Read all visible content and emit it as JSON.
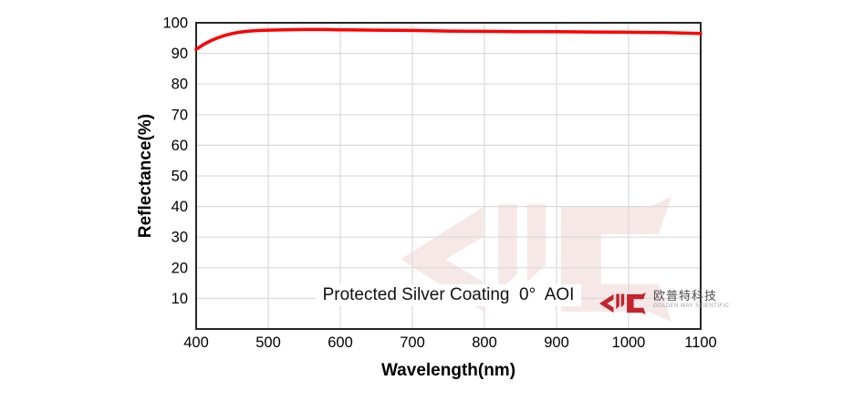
{
  "chart_data": {
    "type": "line",
    "title": "",
    "xlabel": "Wavelength(nm)",
    "ylabel": "Reflectance(%)",
    "annotation": "Protected Silver Coating  0°  AOI",
    "xlim": [
      400,
      1100
    ],
    "ylim": [
      0,
      100
    ],
    "x_ticks": [
      400,
      500,
      600,
      700,
      800,
      900,
      1000,
      1100
    ],
    "y_ticks": [
      10,
      20,
      30,
      40,
      50,
      60,
      70,
      80,
      90,
      100
    ],
    "grid": true,
    "legend": false,
    "series": [
      {
        "name": "Protected Silver Coating 0° AOI Reflectance",
        "color": "#ff0000",
        "x": [
          400,
          410,
          420,
          430,
          440,
          450,
          460,
          470,
          480,
          490,
          500,
          520,
          550,
          580,
          600,
          650,
          700,
          750,
          800,
          850,
          900,
          950,
          1000,
          1050,
          1100
        ],
        "y": [
          91.3,
          92.9,
          94.1,
          95.1,
          95.9,
          96.5,
          96.9,
          97.2,
          97.4,
          97.5,
          97.6,
          97.7,
          97.8,
          97.8,
          97.7,
          97.6,
          97.5,
          97.3,
          97.2,
          97.1,
          97.1,
          97.0,
          96.9,
          96.8,
          96.5
        ]
      }
    ]
  },
  "logo": {
    "company_cn": "欧普特科技",
    "company_en": "GOLDEN WAY SCIENTIFIC",
    "color": "#c4242f",
    "watermark_color": "#f7e8e8"
  },
  "colors": {
    "curve": "#ff0000",
    "grid": "#dadada",
    "axis_frame": "#262626",
    "background": "#ffffff",
    "text": "#000000"
  }
}
